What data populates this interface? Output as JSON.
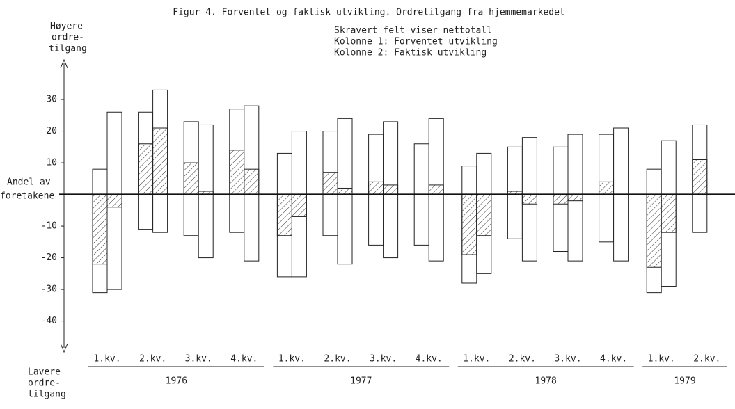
{
  "chart_data": {
    "type": "bar",
    "title": "Figur 4.  Forventet og faktisk utvikling.  Ordretilgang fra hjemmemarkedet",
    "legend": [
      "Skravert felt viser nettotall",
      "Kolonne 1:  Forventet utvikling",
      "Kolonne 2:  Faktisk utvikling"
    ],
    "y_label_top": [
      "Høyere",
      "ordre-",
      "tilgang"
    ],
    "y_label_bottom": [
      "Lavere",
      "ordre-",
      "tilgang"
    ],
    "zero_label": [
      "Andel av",
      "foretakene"
    ],
    "groups": [
      {
        "label": "1976",
        "quarters": [
          "1.kv.",
          "2.kv.",
          "3.kv.",
          "4.kv."
        ]
      },
      {
        "label": "1977",
        "quarters": [
          "1.kv.",
          "2.kv.",
          "3.kv.",
          "4.kv."
        ]
      },
      {
        "label": "1978",
        "quarters": [
          "1.kv.",
          "2.kv.",
          "3.kv.",
          "4.kv."
        ]
      },
      {
        "label": "1979",
        "quarters": [
          "1.kv.",
          "2.kv."
        ]
      }
    ],
    "series": [
      {
        "high": [
          8,
          26,
          23,
          27,
          13,
          20,
          19,
          16,
          9,
          15,
          15,
          19,
          8,
          22
        ],
        "low": [
          -31,
          -11,
          -13,
          -12,
          -26,
          -13,
          -16,
          -16,
          -28,
          -14,
          -18,
          -15,
          -31,
          -12
        ],
        "net": [
          -22,
          16,
          10,
          14,
          -13,
          7,
          4,
          0,
          -19,
          1,
          -3,
          4,
          -23,
          11
        ]
      },
      {
        "high": [
          26,
          33,
          22,
          28,
          20,
          24,
          23,
          24,
          13,
          18,
          19,
          21,
          17,
          null
        ],
        "low": [
          -30,
          -12,
          -20,
          -21,
          -26,
          -22,
          -20,
          -21,
          -25,
          -21,
          -21,
          -21,
          -29,
          null
        ],
        "net": [
          -4,
          21,
          1,
          8,
          -7,
          2,
          3,
          3,
          -13,
          -3,
          -2,
          0,
          -12,
          null
        ]
      }
    ],
    "ylim": [
      -48,
      41
    ],
    "yticks": [
      30,
      20,
      10,
      -10,
      -20,
      -30,
      -40
    ]
  }
}
